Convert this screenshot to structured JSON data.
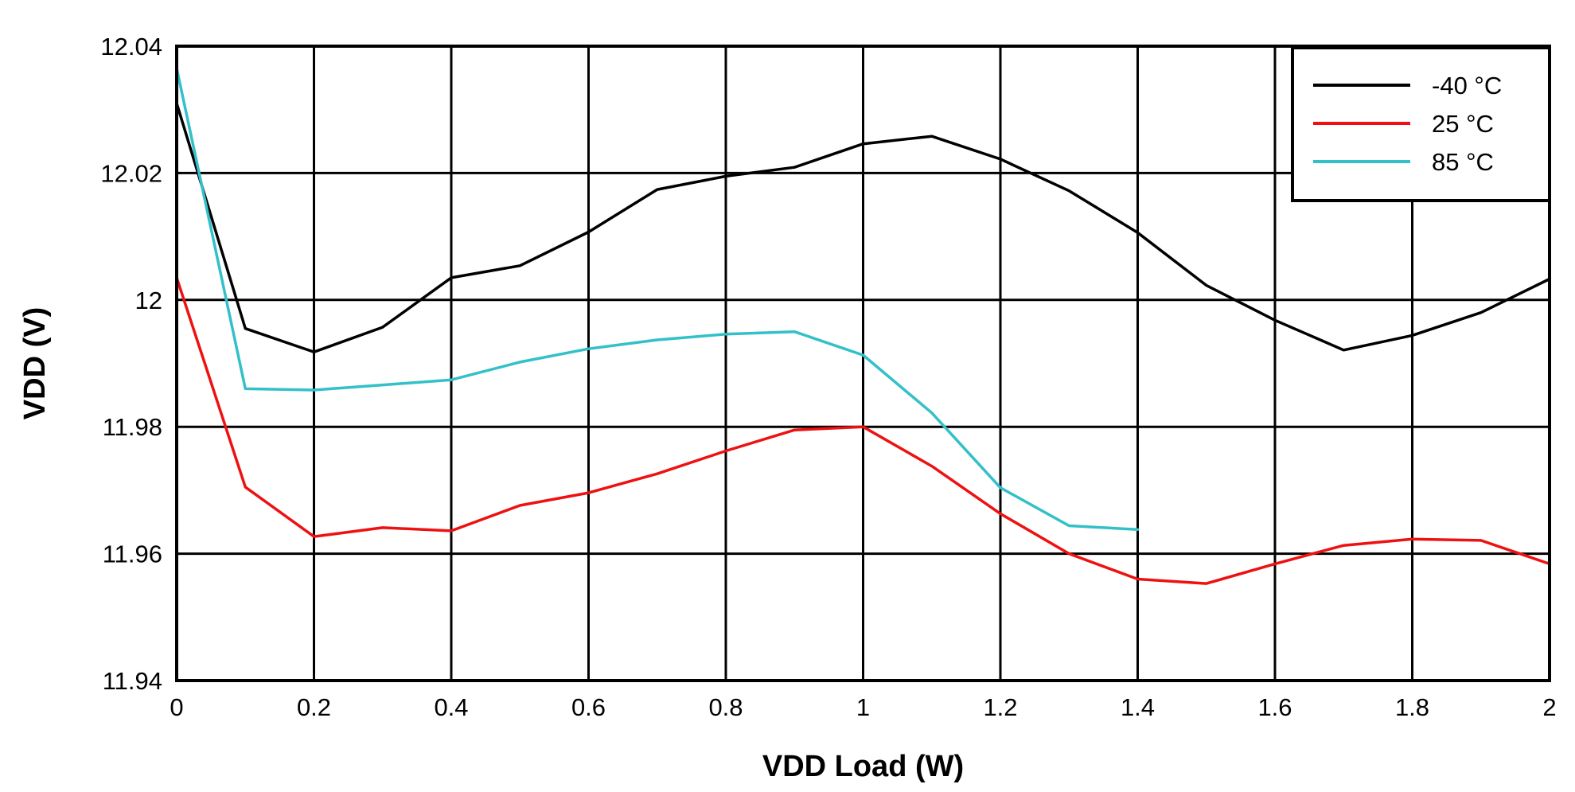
{
  "chart_data": {
    "type": "line",
    "xlabel": "VDD Load (W)",
    "ylabel": "VDD (V)",
    "xlim": [
      0,
      2
    ],
    "ylim": [
      11.94,
      12.04
    ],
    "x_ticks": [
      "0",
      "0.2",
      "0.4",
      "0.6",
      "0.8",
      "1",
      "1.2",
      "1.4",
      "1.6",
      "1.8",
      "2"
    ],
    "x_tick_values": [
      0,
      0.2,
      0.4,
      0.6,
      0.8,
      1.0,
      1.2,
      1.4,
      1.6,
      1.8,
      2.0
    ],
    "y_ticks": [
      "11.94",
      "11.96",
      "11.98",
      "12",
      "12.02",
      "12.04"
    ],
    "y_tick_values": [
      11.94,
      11.96,
      11.98,
      12.0,
      12.02,
      12.04
    ],
    "grid": true,
    "legend_position": "top-right",
    "series": [
      {
        "name": "-40 °C",
        "color": "#000000",
        "x": [
          0,
          0.1,
          0.2,
          0.3,
          0.4,
          0.5,
          0.6,
          0.7,
          0.8,
          0.9,
          1.0,
          1.1,
          1.2,
          1.3,
          1.4,
          1.5,
          1.6,
          1.7,
          1.8,
          1.9,
          2.0
        ],
        "y": [
          12.031,
          11.9955,
          11.9918,
          11.9957,
          12.0035,
          12.0054,
          12.0107,
          12.0174,
          12.0195,
          12.0209,
          12.0246,
          12.0258,
          12.0222,
          12.0172,
          12.0106,
          12.0023,
          11.9968,
          11.9921,
          11.9944,
          11.998,
          12.0033
        ]
      },
      {
        "name": "25 °C",
        "color": "#ee1111",
        "x": [
          0,
          0.1,
          0.2,
          0.3,
          0.4,
          0.5,
          0.6,
          0.7,
          0.8,
          0.9,
          1.0,
          1.1,
          1.2,
          1.3,
          1.4,
          1.5,
          1.6,
          1.7,
          1.8,
          1.9,
          2.0
        ],
        "y": [
          12.0035,
          11.9705,
          11.9627,
          11.9641,
          11.9636,
          11.9676,
          11.9696,
          11.9726,
          11.9762,
          11.9795,
          11.98,
          11.9738,
          11.9663,
          11.96,
          11.956,
          11.9553,
          11.9584,
          11.9613,
          11.9623,
          11.9621,
          11.9584
        ]
      },
      {
        "name": "85 °C",
        "color": "#33c0c8",
        "x": [
          0,
          0.1,
          0.2,
          0.3,
          0.4,
          0.5,
          0.6,
          0.7,
          0.8,
          0.9,
          1.0,
          1.1,
          1.2,
          1.3,
          1.4
        ],
        "y": [
          12.0365,
          11.986,
          11.9858,
          11.9866,
          11.9874,
          11.9902,
          11.9923,
          11.9937,
          11.9946,
          11.995,
          11.9913,
          11.9822,
          11.9704,
          11.9644,
          11.9638
        ]
      }
    ]
  }
}
